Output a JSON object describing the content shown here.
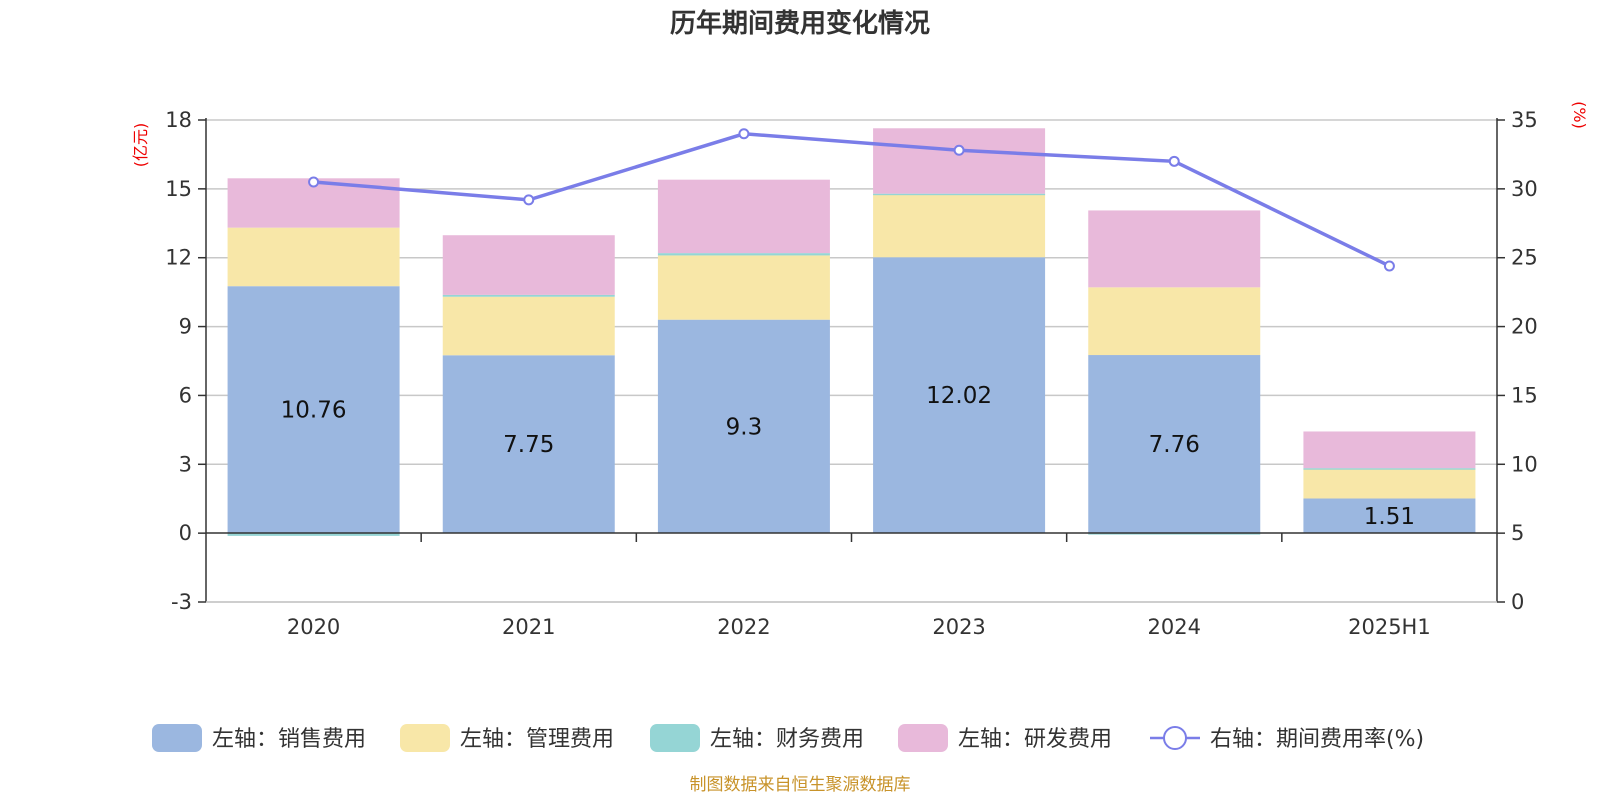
{
  "chart_data": {
    "type": "bar",
    "title": "历年期间费用变化情况",
    "categories": [
      "2020",
      "2021",
      "2022",
      "2023",
      "2024",
      "2025H1"
    ],
    "left_axis": {
      "unit": "(亿元)",
      "ylim": [
        -3,
        18
      ],
      "ticks": [
        -3,
        0,
        3,
        6,
        9,
        12,
        15,
        18
      ]
    },
    "right_axis": {
      "unit": "(%)",
      "ylim": [
        0,
        35
      ],
      "ticks": [
        0,
        5,
        10,
        15,
        20,
        25,
        30,
        35
      ]
    },
    "series": [
      {
        "name": "左轴：销售费用",
        "type": "bar",
        "axis": "left",
        "color": "#9bb7e0",
        "values": [
          10.76,
          7.75,
          9.3,
          12.02,
          7.76,
          1.51
        ],
        "labels": [
          "10.76",
          "7.75",
          "9.3",
          "12.02",
          "7.76",
          "1.51"
        ]
      },
      {
        "name": "左轴：管理费用",
        "type": "bar",
        "axis": "left",
        "color": "#f8e7a8",
        "values": [
          2.55,
          2.55,
          2.8,
          2.75,
          2.95,
          1.3
        ]
      },
      {
        "name": "左轴：财务费用",
        "type": "bar",
        "axis": "left",
        "color": "#95d5d5",
        "values": [
          -0.12,
          0.08,
          0.1,
          0.02,
          -0.05,
          0.02
        ]
      },
      {
        "name": "左轴：研发费用",
        "type": "bar",
        "axis": "left",
        "color": "#e8b9da",
        "values": [
          2.15,
          2.6,
          3.2,
          2.85,
          3.35,
          1.6
        ]
      },
      {
        "name": "右轴：期间费用率(%)",
        "type": "line",
        "axis": "right",
        "color": "#7a7de8",
        "values": [
          30.5,
          29.2,
          34.0,
          32.8,
          32.0,
          24.4
        ]
      }
    ],
    "grid": true,
    "legend": "bottom"
  },
  "source": "制图数据来自恒生聚源数据库"
}
